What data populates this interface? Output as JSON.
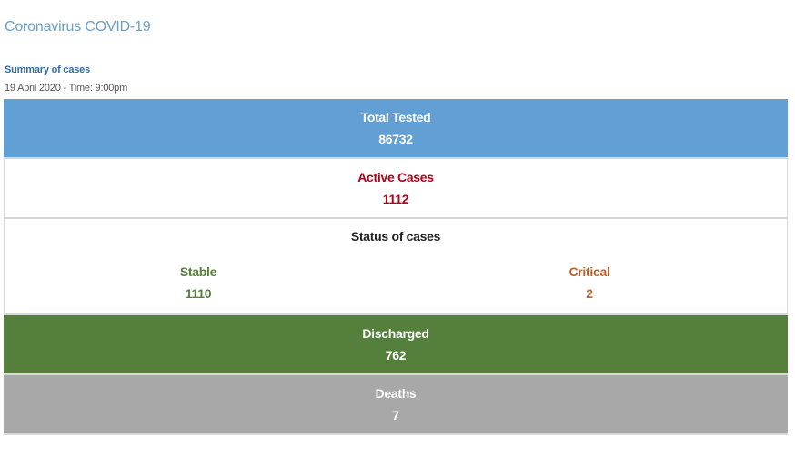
{
  "page": {
    "title": "Coronavirus COVID-19",
    "summary_label": "Summary of cases",
    "date_line": "19 April 2020 - Time: 9:00pm"
  },
  "stats": {
    "total_tested": {
      "label": "Total Tested",
      "value": "86732"
    },
    "active_cases": {
      "label": "Active Cases",
      "value": "1112"
    },
    "status": {
      "title": "Status of cases",
      "stable": {
        "label": "Stable",
        "value": "1110"
      },
      "critical": {
        "label": "Critical",
        "value": "2"
      }
    },
    "discharged": {
      "label": "Discharged",
      "value": "762"
    },
    "deaths": {
      "label": "Deaths",
      "value": "7"
    }
  },
  "colors": {
    "title": "#6aa0c6",
    "tested_bg": "#629fd5",
    "active_text": "#b0001a",
    "stable_text": "#567f38",
    "critical_text": "#c0602a",
    "discharged_bg": "#55803b",
    "deaths_bg": "#a8a8a8"
  }
}
